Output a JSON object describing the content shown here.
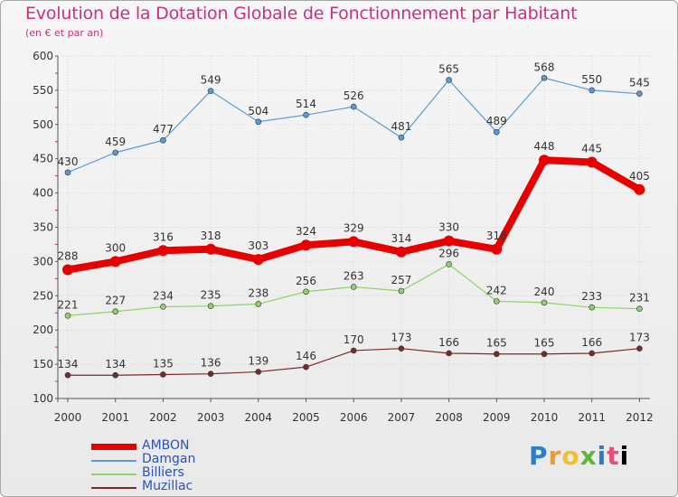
{
  "chart_data": {
    "type": "line",
    "title": "Evolution de la Dotation Globale de Fonctionnement par Habitant",
    "subtitle": "(en € et par an)",
    "categories": [
      "2000",
      "2001",
      "2002",
      "2003",
      "2004",
      "2005",
      "2006",
      "2007",
      "2008",
      "2009",
      "2010",
      "2011",
      "2012"
    ],
    "ylim": [
      100,
      600
    ],
    "yticks": [
      100,
      150,
      200,
      250,
      300,
      350,
      400,
      450,
      500,
      550,
      600
    ],
    "series": [
      {
        "name": "AMBON",
        "color": "#e60000",
        "values": [
          288,
          300,
          316,
          318,
          303,
          324,
          329,
          314,
          330,
          318,
          448,
          445,
          405
        ]
      },
      {
        "name": "Damgan",
        "color": "#5b9bd5",
        "values": [
          430,
          459,
          477,
          549,
          504,
          514,
          526,
          481,
          565,
          489,
          568,
          550,
          545
        ]
      },
      {
        "name": "Billiers",
        "color": "#8fd16a",
        "values": [
          221,
          227,
          234,
          235,
          238,
          256,
          263,
          257,
          296,
          242,
          240,
          233,
          231
        ]
      },
      {
        "name": "Muzillac",
        "color": "#7a2a2a",
        "values": [
          134,
          134,
          135,
          136,
          139,
          146,
          170,
          173,
          166,
          165,
          165,
          166,
          173
        ]
      }
    ]
  },
  "logo": {
    "text": [
      "P",
      "r",
      "o",
      "x",
      "i",
      "t",
      "i"
    ]
  },
  "colors": {
    "title": "#c8327a",
    "legend_text": "#2a52be"
  }
}
